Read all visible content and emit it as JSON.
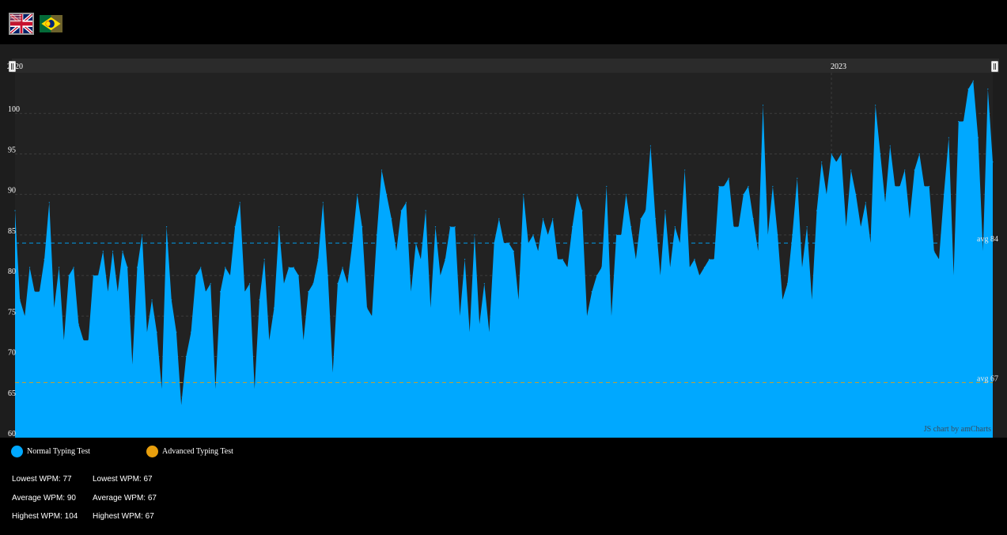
{
  "languages": [
    {
      "code": "en",
      "name": "English"
    },
    {
      "code": "pt-br",
      "name": "Português"
    }
  ],
  "legend": [
    {
      "label": "Normal Typing Test",
      "color": "#00a8ff"
    },
    {
      "label": "Advanced Typing Test",
      "color": "#e89f0d"
    }
  ],
  "stats": {
    "normal": {
      "lowest": "Lowest WPM: 77",
      "average": "Average WPM: 90",
      "highest": "Highest WPM: 104"
    },
    "advanced": {
      "lowest": "Lowest WPM: 67",
      "average": "Average WPM: 67",
      "highest": "Highest WPM: 67"
    }
  },
  "credit": "JS chart by amCharts",
  "chart_data": {
    "type": "area",
    "ylim": [
      60,
      105
    ],
    "yticks": [
      60,
      65,
      70,
      75,
      80,
      85,
      90,
      95,
      100
    ],
    "xticks": [
      {
        "label": "2020",
        "pos": 0
      },
      {
        "label": "2023",
        "pos": 0.835
      }
    ],
    "grid": true,
    "guides": [
      {
        "label": "avg 84",
        "value": 84,
        "color": "#00a8ff"
      },
      {
        "label": "avg 67",
        "value": 66.8,
        "color": "#e89f0d"
      }
    ],
    "series": [
      {
        "name": "Normal Typing Test",
        "color": "#00a8ff",
        "values": [
          88,
          77,
          75,
          81,
          78,
          78,
          82,
          89,
          76,
          81,
          72,
          80,
          81,
          74,
          72,
          72,
          80,
          80,
          83,
          78,
          83,
          78,
          83,
          81,
          69,
          81,
          85,
          73,
          77,
          73,
          66,
          86,
          77,
          73,
          64,
          70,
          73,
          80,
          81,
          78,
          79,
          66,
          78,
          81,
          80,
          86,
          89,
          78,
          79,
          66,
          77,
          82,
          72,
          76,
          86,
          79,
          81,
          81,
          80,
          72,
          78,
          79,
          82,
          89,
          80,
          68,
          79,
          81,
          79,
          84,
          90,
          86,
          76,
          75,
          85,
          93,
          90,
          87,
          83,
          88,
          89,
          78,
          84,
          82,
          88,
          76,
          86,
          80,
          82,
          86,
          86,
          75,
          82,
          73,
          85,
          74,
          79,
          73,
          84,
          87,
          84,
          84,
          83,
          77,
          90,
          84,
          85,
          83,
          87,
          85,
          87,
          82,
          82,
          81,
          86,
          90,
          88,
          75,
          78,
          80,
          81,
          91,
          75,
          85,
          85,
          90,
          86,
          82,
          87,
          88,
          96,
          87,
          80,
          88,
          81,
          86,
          84,
          93,
          81,
          82,
          80,
          81,
          82,
          82,
          91,
          91,
          92,
          86,
          86,
          90,
          91,
          87,
          83,
          101,
          85,
          91,
          85,
          77,
          79,
          85,
          92,
          81,
          86,
          77,
          88,
          94,
          90,
          95,
          94,
          95,
          86,
          93,
          90,
          86,
          89,
          84,
          101,
          95,
          89,
          96,
          91,
          91,
          93,
          87,
          93,
          95,
          91,
          91,
          83,
          82,
          90,
          97,
          80,
          99,
          99,
          103,
          104,
          97,
          83,
          103,
          94
        ]
      }
    ]
  }
}
